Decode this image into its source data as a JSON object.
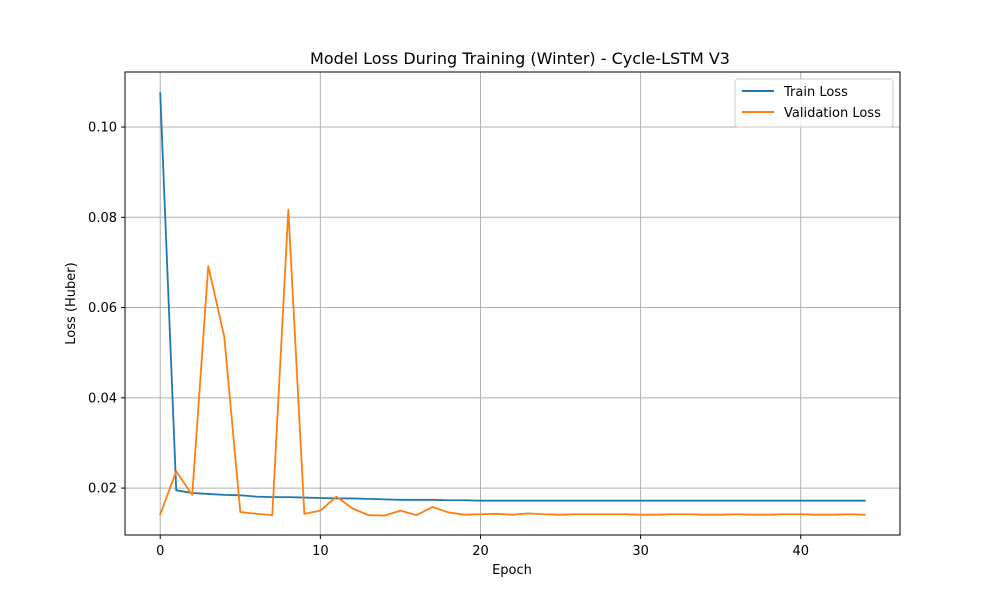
{
  "chart_data": {
    "type": "line",
    "title": "Model Loss During Training (Winter) - Cycle-LSTM V3",
    "xlabel": "Epoch",
    "ylabel": "Loss (Huber)",
    "xlim": [
      -2.2,
      46.2
    ],
    "ylim": [
      0.0096,
      0.1122
    ],
    "xticks": [
      0,
      10,
      20,
      30,
      40
    ],
    "yticks": [
      0.02,
      0.04,
      0.06,
      0.08,
      0.1
    ],
    "ytick_labels": [
      "0.02",
      "0.04",
      "0.06",
      "0.08",
      "0.10"
    ],
    "grid": true,
    "legend_position": "top-right",
    "x": [
      0,
      1,
      2,
      3,
      4,
      5,
      6,
      7,
      8,
      9,
      10,
      11,
      12,
      13,
      14,
      15,
      16,
      17,
      18,
      19,
      20,
      21,
      22,
      23,
      24,
      25,
      26,
      27,
      28,
      29,
      30,
      31,
      32,
      33,
      34,
      35,
      36,
      37,
      38,
      39,
      40,
      41,
      42,
      43,
      44
    ],
    "series": [
      {
        "name": "Train Loss",
        "color": "#1f77b4",
        "values": [
          0.1075,
          0.0195,
          0.0189,
          0.0187,
          0.0185,
          0.0184,
          0.0181,
          0.018,
          0.018,
          0.0179,
          0.0178,
          0.0177,
          0.0177,
          0.0176,
          0.0175,
          0.0174,
          0.0174,
          0.0174,
          0.0173,
          0.0173,
          0.0172,
          0.0172,
          0.0172,
          0.0172,
          0.0172,
          0.0172,
          0.0172,
          0.0172,
          0.0172,
          0.0172,
          0.0172,
          0.0172,
          0.0172,
          0.0172,
          0.0172,
          0.0172,
          0.0172,
          0.0172,
          0.0172,
          0.0172,
          0.0172,
          0.0172,
          0.0172,
          0.0172,
          0.0172
        ]
      },
      {
        "name": "Validation Loss",
        "color": "#ff7f0e",
        "values": [
          0.0142,
          0.0237,
          0.0185,
          0.0692,
          0.0535,
          0.0147,
          0.0143,
          0.014,
          0.0817,
          0.0143,
          0.015,
          0.0181,
          0.0155,
          0.014,
          0.0139,
          0.015,
          0.014,
          0.0158,
          0.0146,
          0.0141,
          0.0142,
          0.0143,
          0.0141,
          0.0144,
          0.0142,
          0.0141,
          0.0142,
          0.0142,
          0.0142,
          0.0142,
          0.0141,
          0.0141,
          0.0142,
          0.0142,
          0.0141,
          0.0141,
          0.0142,
          0.0141,
          0.0141,
          0.0142,
          0.0142,
          0.0141,
          0.0141,
          0.0142,
          0.0141
        ]
      }
    ]
  }
}
